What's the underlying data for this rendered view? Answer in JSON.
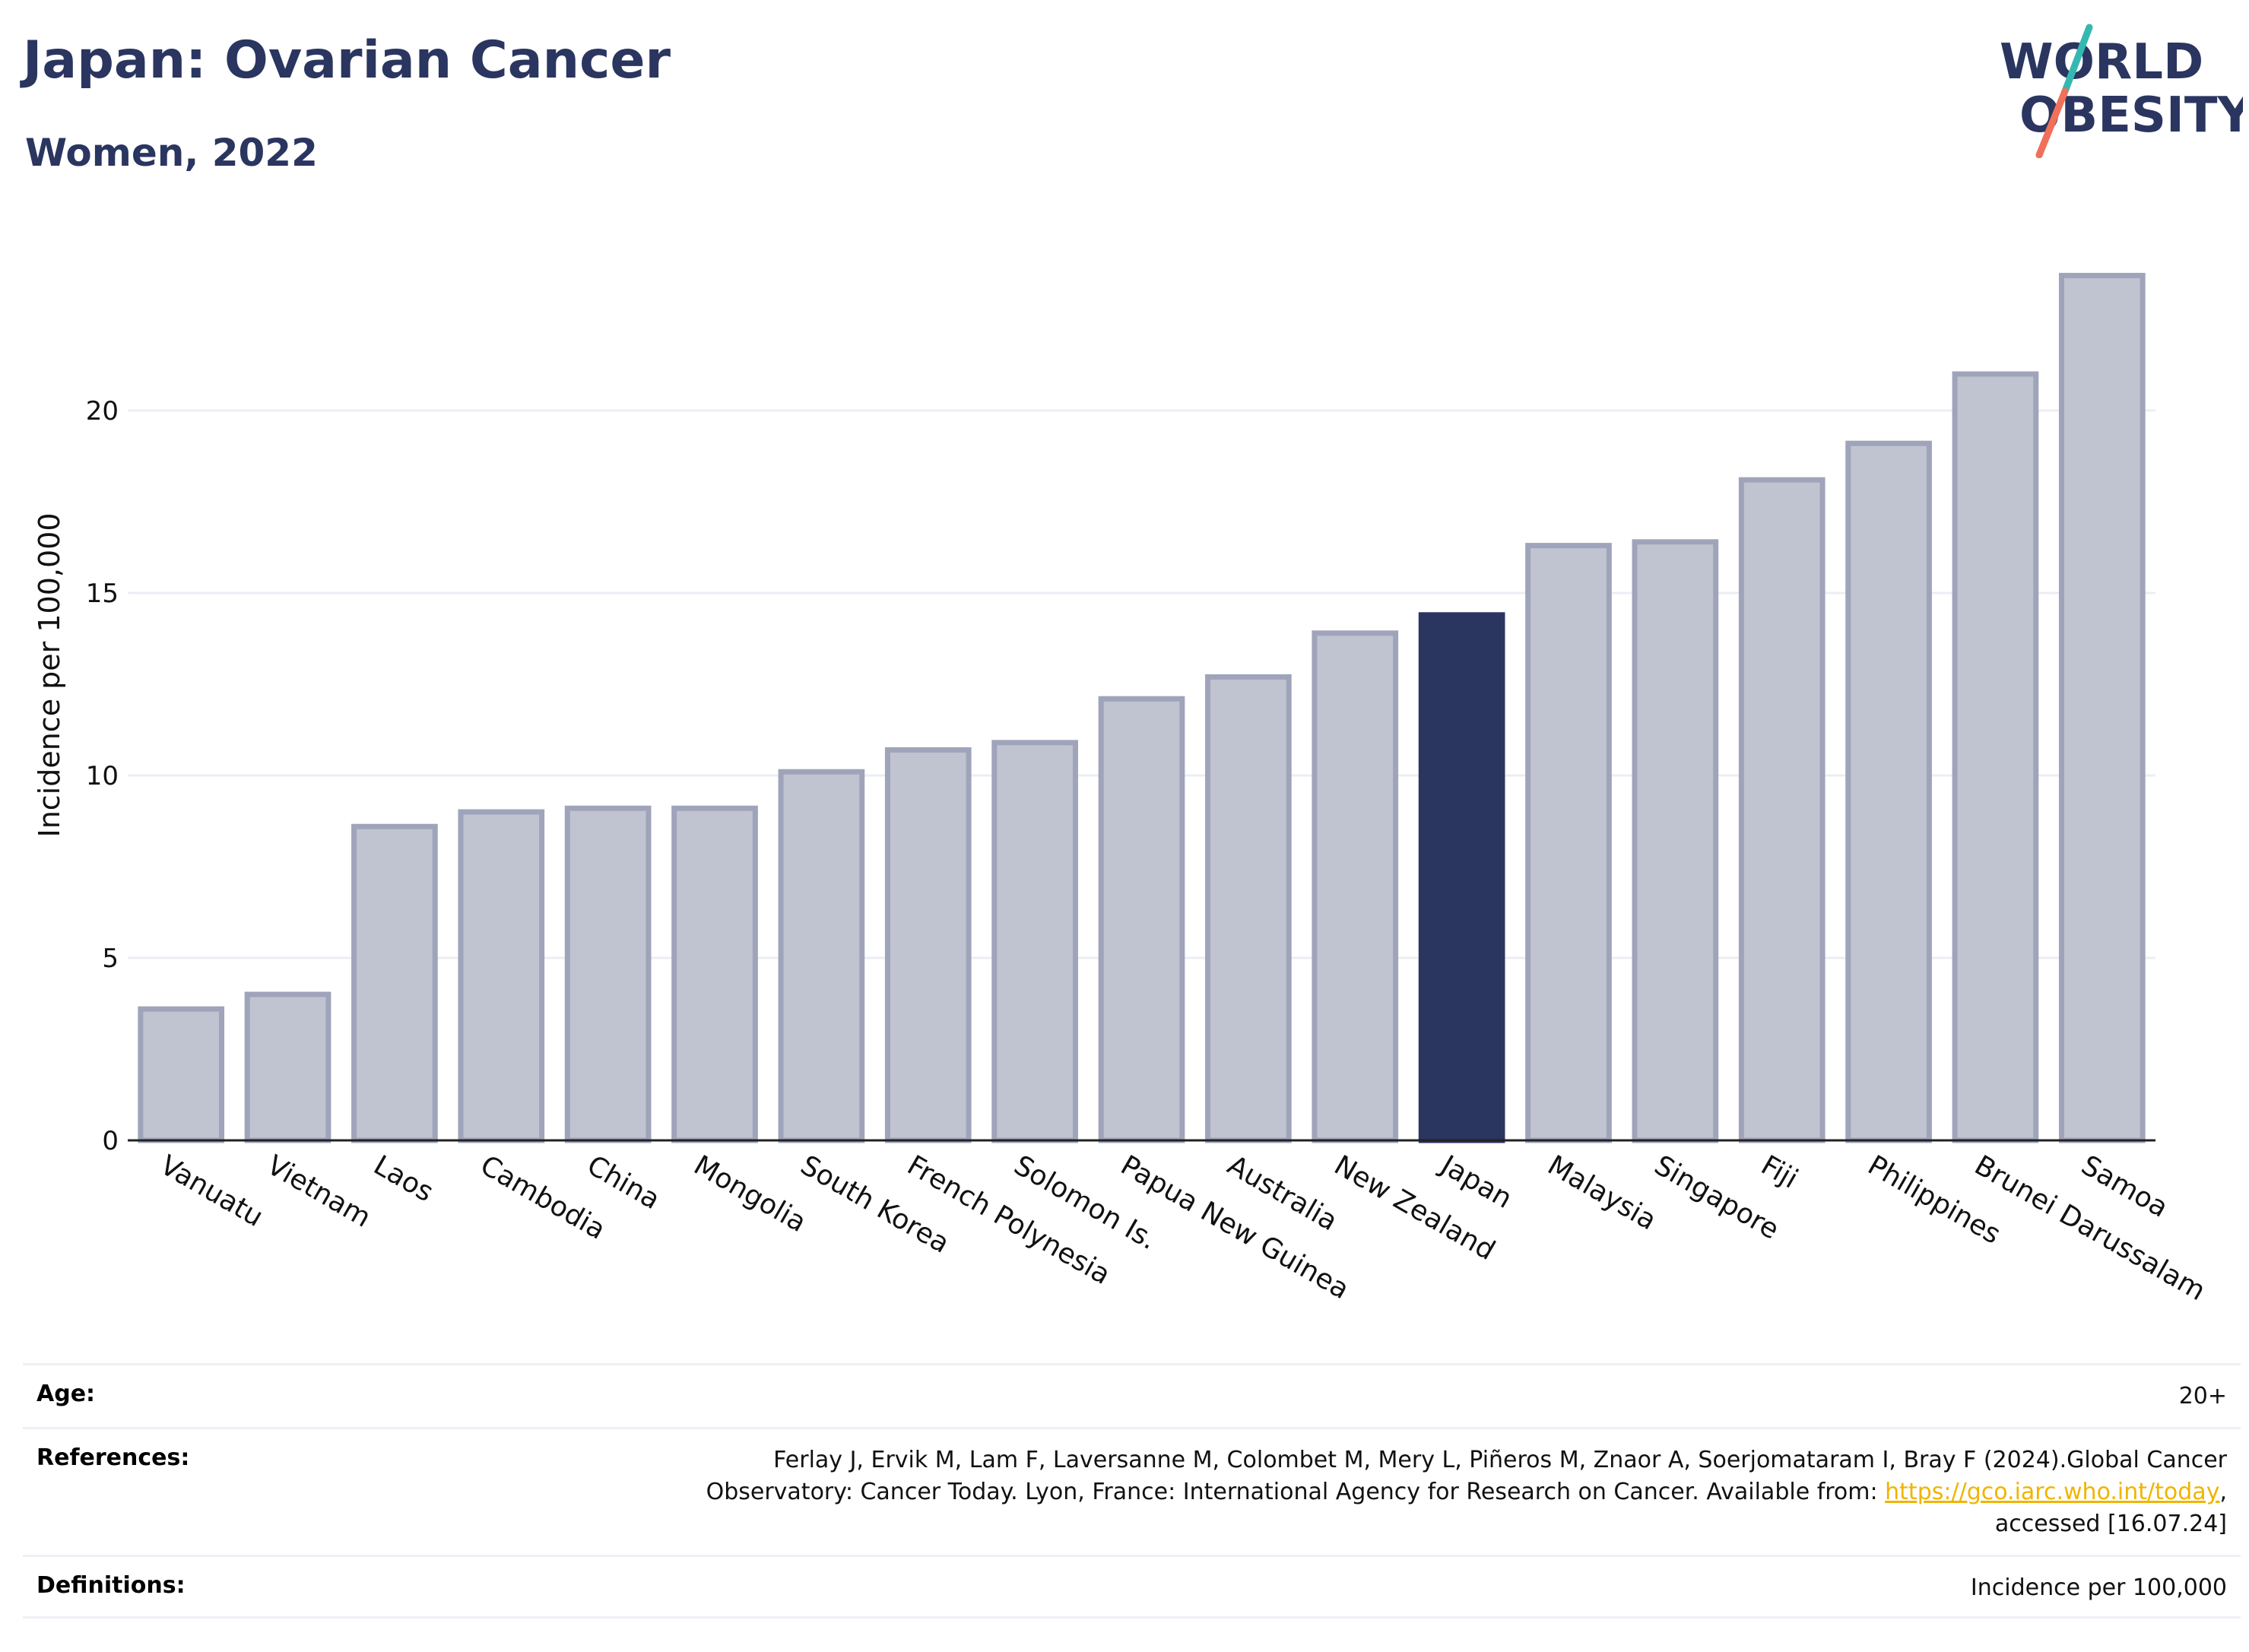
{
  "header": {
    "title": "Japan: Ovarian Cancer",
    "subtitle": "Women, 2022"
  },
  "logo": {
    "line1": "WORLD",
    "line2": "OBESITY",
    "colors": {
      "text": "#2a3560",
      "slash_top": "#35b8b0",
      "slash_bottom": "#f0705a"
    }
  },
  "chart_data": {
    "type": "bar",
    "ylabel": "Incidence per 100,000",
    "xlabel": "",
    "ylim": [
      0,
      25
    ],
    "yticks": [
      0,
      5,
      10,
      15,
      20
    ],
    "grid": true,
    "highlight": "Japan",
    "colors": {
      "bar": "#c0c3d0",
      "bar_border": "#9fa4ba",
      "highlight": "#2a3560",
      "grid": "#eceef5"
    },
    "categories": [
      "Vanuatu",
      "Vietnam",
      "Laos",
      "Cambodia",
      "China",
      "Mongolia",
      "South Korea",
      "French Polynesia",
      "Solomon Is.",
      "Papua New Guinea",
      "Australia",
      "New Zealand",
      "Japan",
      "Malaysia",
      "Singapore",
      "Fiji",
      "Philippines",
      "Brunei Darussalam",
      "Samoa"
    ],
    "values": [
      3.6,
      4.0,
      8.6,
      9.0,
      9.1,
      9.1,
      10.1,
      10.7,
      10.9,
      12.1,
      12.7,
      13.9,
      14.4,
      16.3,
      16.4,
      18.1,
      19.1,
      21.0,
      23.7
    ]
  },
  "info": {
    "age_label": "Age:",
    "age_value": "20+",
    "references_label": "References:",
    "references_line1": "Ferlay J, Ervik M, Lam F, Laversanne M, Colombet M, Mery L, Piñeros M, Znaor A, Soerjomataram I, Bray F (2024).Global Cancer",
    "references_line2_prefix": "Observatory: Cancer Today. Lyon, France: International Agency for Research on Cancer. Available from: ",
    "references_link": "https://gco.iarc.who.int/today",
    "references_line2_suffix": ",",
    "references_line3": "accessed [16.07.24]",
    "definitions_label": "Definitions:",
    "definitions_value": "Incidence per 100,000"
  }
}
